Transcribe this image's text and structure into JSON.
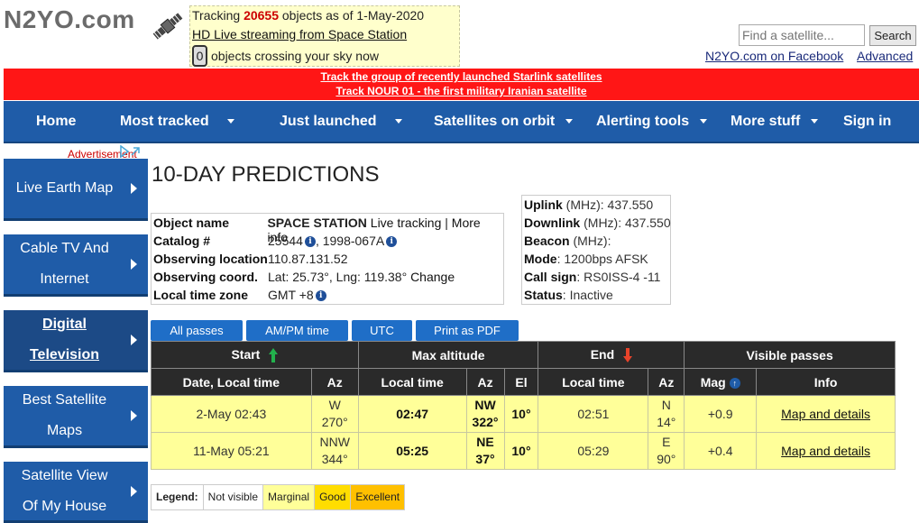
{
  "header": {
    "logo_text": "N2YO.com",
    "tracking_prefix": "Tracking",
    "tracking_count": "20655",
    "tracking_suffix": "objects as of 1-May-2020",
    "hd_link": "HD Live streaming from Space Station",
    "crossing_count": "0",
    "crossing_text": "objects crossing your sky now",
    "search_placeholder": "Find a satellite...",
    "search_button": "Search",
    "facebook_link": "N2YO.com on Facebook",
    "advanced_link": "Advanced"
  },
  "announcements": [
    "Track the group of recently launched Starlink satellites",
    "Track NOUR 01 - the first military Iranian satellite"
  ],
  "nav": [
    {
      "label": "Home",
      "dropdown": false
    },
    {
      "label": "Most tracked",
      "dropdown": true
    },
    {
      "label": "Just launched",
      "dropdown": true
    },
    {
      "label": "Satellites on orbit",
      "dropdown": true
    },
    {
      "label": "Alerting tools",
      "dropdown": true
    },
    {
      "label": "More stuff",
      "dropdown": true
    },
    {
      "label": "Sign in",
      "dropdown": false
    }
  ],
  "sidebar": {
    "ad_label": "Advertisement",
    "items": [
      {
        "line1": "Live Earth Map",
        "line2": ""
      },
      {
        "line1": "Cable TV And",
        "line2": "Internet"
      },
      {
        "line1": "Digital",
        "line2": "Television"
      },
      {
        "line1": "Best Satellite",
        "line2": "Maps"
      },
      {
        "line1": "Satellite View",
        "line2": "Of My House"
      }
    ]
  },
  "main": {
    "title": "10-DAY PREDICTIONS",
    "object": {
      "name_label": "Object name",
      "name": "SPACE STATION",
      "live_link": "Live tracking",
      "sep": "|",
      "more_link": "More info",
      "catalog_label": "Catalog #",
      "catalog": "25544",
      "intl_id": ", 1998-067A",
      "obs_loc_label": "Observing location",
      "obs_loc": "110.87.131.52",
      "obs_coord_label": "Observing coord.",
      "obs_coord": "Lat: 25.73°, Lng: 119.38°",
      "change_link": "Change",
      "tz_label": "Local time zone",
      "tz": "GMT +8"
    },
    "radio": {
      "uplink_label": "Uplink",
      "uplink": "(MHz): 437.550",
      "downlink_label": "Downlink",
      "downlink": "(MHz): 437.550",
      "beacon_label": "Beacon",
      "beacon": "(MHz):",
      "mode_label": "Mode",
      "mode": ": 1200bps AFSK",
      "callsign_label": "Call sign",
      "callsign": ": RS0ISS-4 -11",
      "status_label": "Status",
      "status": ": Inactive"
    },
    "buttons": [
      "All passes",
      "AM/PM time",
      "UTC",
      "Print as PDF"
    ],
    "table": {
      "group_headers": [
        "Start",
        "Max altitude",
        "End",
        "Visible passes"
      ],
      "col_headers": [
        "Date, Local time",
        "Az",
        "Local time",
        "Az",
        "El",
        "Local time",
        "Az",
        "Mag",
        "Info"
      ],
      "rows": [
        {
          "start": "2-May 02:43",
          "start_az_dir": "W",
          "start_az_deg": "270°",
          "max_time": "02:47",
          "max_az_dir": "NW",
          "max_az_deg": "322°",
          "max_el": "10°",
          "end_time": "02:51",
          "end_az_dir": "N",
          "end_az_deg": "14°",
          "mag": "+0.9",
          "info": "Map and details"
        },
        {
          "start": "11-May 05:21",
          "start_az_dir": "NNW",
          "start_az_deg": "344°",
          "max_time": "05:25",
          "max_az_dir": "NE",
          "max_az_deg": "37°",
          "max_el": "10°",
          "end_time": "05:29",
          "end_az_dir": "E",
          "end_az_deg": "90°",
          "mag": "+0.4",
          "info": "Map and details"
        }
      ]
    },
    "legend": {
      "label": "Legend:",
      "items": [
        "Not visible",
        "Marginal",
        "Good",
        "Excellent"
      ]
    }
  }
}
